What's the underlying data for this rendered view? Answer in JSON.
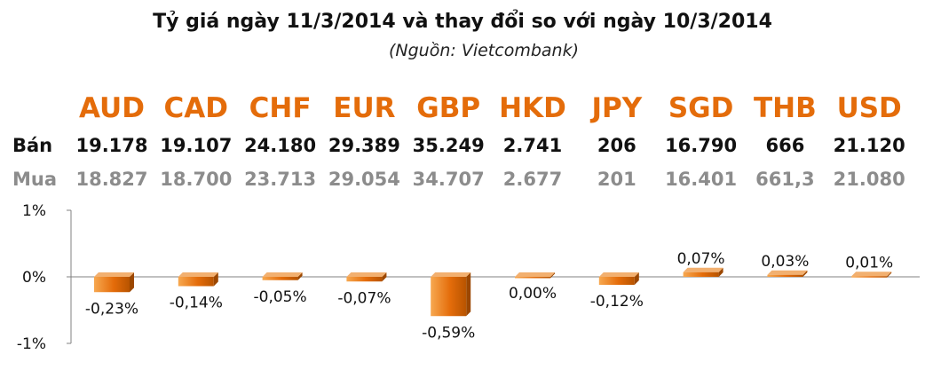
{
  "title": "Tỷ giá ngày 11/3/2014 và thay đổi so với ngày 10/3/2014",
  "subtitle": "(Nguồn: Vietcombank)",
  "rows": {
    "sell_label": "Bán",
    "buy_label": "Mua"
  },
  "currencies": [
    "AUD",
    "CAD",
    "CHF",
    "EUR",
    "GBP",
    "HKD",
    "JPY",
    "SGD",
    "THB",
    "USD"
  ],
  "sell": [
    "19.178",
    "19.107",
    "24.180",
    "29.389",
    "35.249",
    "2.741",
    "206",
    "16.790",
    "666",
    "21.120"
  ],
  "buy": [
    "18.827",
    "18.700",
    "23.713",
    "29.054",
    "34.707",
    "2.677",
    "201",
    "16.401",
    "661,3",
    "21.080"
  ],
  "colors": {
    "accent": "#e46c0a",
    "bar_light": "#f5a04a",
    "bar_dark": "#b85400",
    "buy_text": "#8c8c8c"
  },
  "chart_data": {
    "type": "bar",
    "categories": [
      "AUD",
      "CAD",
      "CHF",
      "EUR",
      "GBP",
      "HKD",
      "JPY",
      "SGD",
      "THB",
      "USD"
    ],
    "values": [
      -0.23,
      -0.14,
      -0.05,
      -0.07,
      -0.59,
      0.0,
      -0.12,
      0.07,
      0.03,
      0.01
    ],
    "data_labels": [
      "-0,23%",
      "-0,14%",
      "-0,05%",
      "-0,07%",
      "-0,59%",
      "0,00%",
      "-0,12%",
      "0,07%",
      "0,03%",
      "0,01%"
    ],
    "ylim": [
      -1,
      1
    ],
    "yticks": [
      1,
      0,
      -1
    ],
    "ytick_labels": [
      "1%",
      "0%",
      "-1%"
    ],
    "grid": false
  }
}
